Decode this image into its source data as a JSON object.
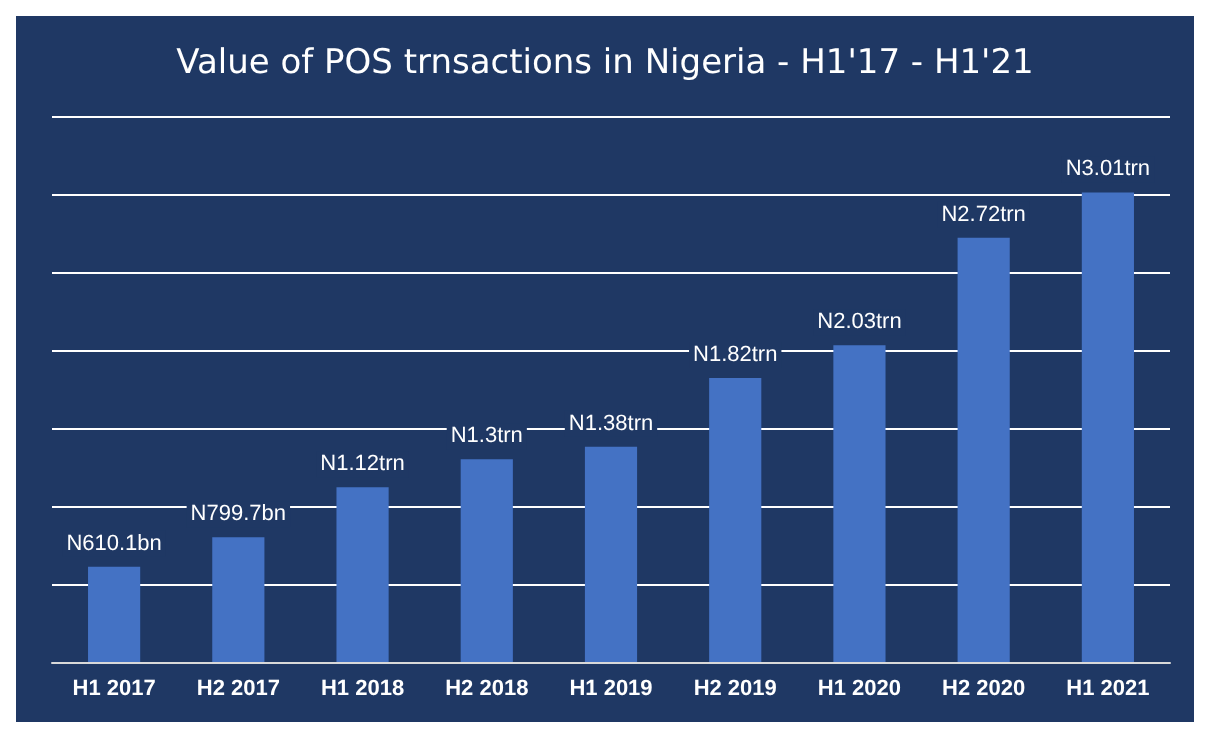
{
  "chart_data": {
    "type": "bar",
    "title": "Value of POS trnsactions in Nigeria - H1'17 - H1'21",
    "categories": [
      "H1 2017",
      "H2 2017",
      "H1 2018",
      "H2 2018",
      "H1 2019",
      "H2 2019",
      "H1 2020",
      "H2 2020",
      "H1 2021"
    ],
    "values": [
      0.6101,
      0.7997,
      1.12,
      1.3,
      1.38,
      1.82,
      2.03,
      2.72,
      3.01
    ],
    "value_labels": [
      "N610.1bn",
      "N799.7bn",
      "N1.12trn",
      "N1.3trn",
      "N1.38trn",
      "N1.82trn",
      "N2.03trn",
      "N2.72trn",
      "N3.01trn"
    ],
    "color": "#4472c4",
    "ylim": [
      0,
      3.5
    ],
    "yticks": [
      {
        "value": 0,
        "label": null
      },
      {
        "value": 0.5,
        "label": null
      },
      {
        "value": 1,
        "label": null
      },
      {
        "value": 1.5,
        "label": null
      },
      {
        "value": 2,
        "label": null
      },
      {
        "value": 2.5,
        "label": null
      },
      {
        "value": 3,
        "label": null
      },
      {
        "value": 3.5,
        "label": null
      }
    ],
    "tick_labels": "x",
    "grid": "y"
  }
}
